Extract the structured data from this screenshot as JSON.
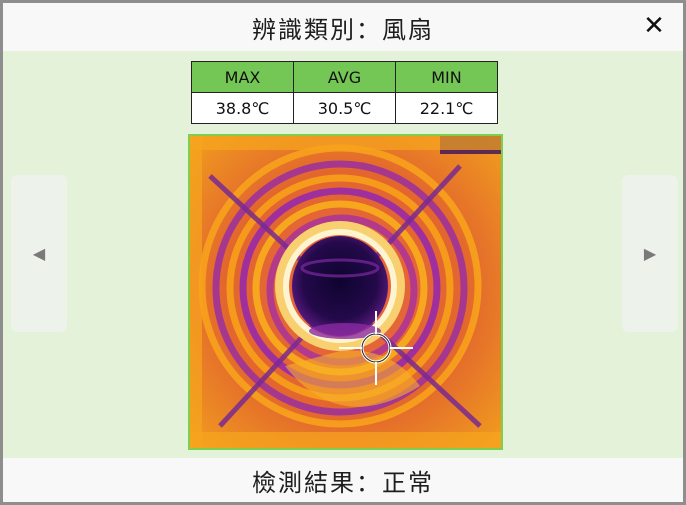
{
  "header": {
    "title": "辨識類別：風扇",
    "close_symbol": "✕"
  },
  "stats": {
    "headers": [
      "MAX",
      "AVG",
      "MIN"
    ],
    "values": [
      "38.8℃",
      "30.5℃",
      "22.1℃"
    ],
    "header_color": "#74c655"
  },
  "thermal_image": {
    "subject": "fan thermal image",
    "palette": [
      "#2a0a50",
      "#8a2aa0",
      "#d84f36",
      "#f39a1a",
      "#fff6c8"
    ]
  },
  "navigation": {
    "prev_symbol": "◀",
    "next_symbol": "▶"
  },
  "footer": {
    "result": "檢測結果：正常"
  }
}
